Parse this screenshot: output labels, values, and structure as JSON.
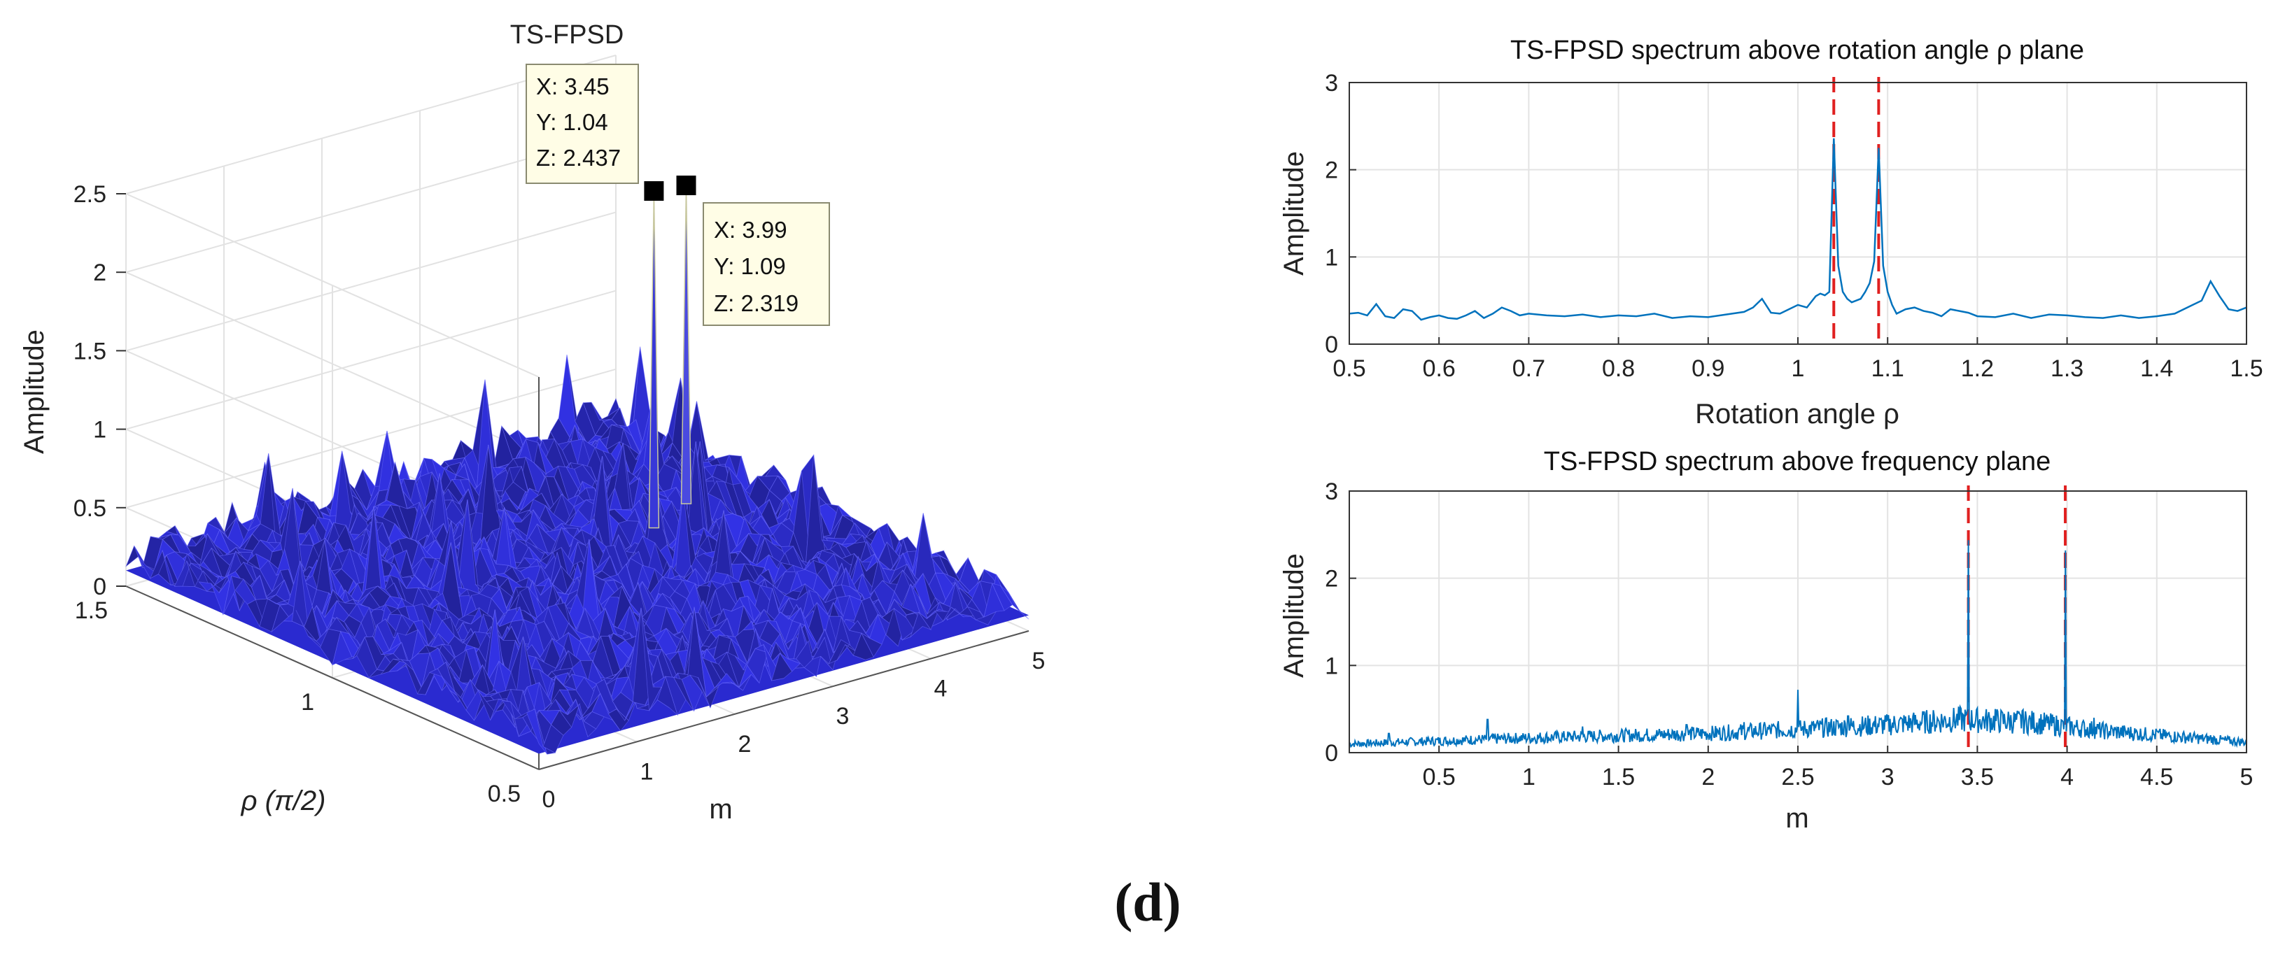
{
  "chart_data": [
    {
      "type": "surface3d",
      "title": "TS-FPSD",
      "zlabel": "Amplitude",
      "xlabel": "m",
      "ylabel": "ρ (π/2)",
      "zlim": [
        0,
        2.5
      ],
      "xlim": [
        0,
        5
      ],
      "ylim": [
        0.5,
        1.5
      ],
      "z_ticks": [
        "2.5",
        "2",
        "1.5",
        "1",
        "0.5",
        "0"
      ],
      "x_ticks": [
        "0",
        "1",
        "2",
        "3",
        "4",
        "5"
      ],
      "y_ticks": [
        "1.5",
        "1",
        "0.5"
      ],
      "grid": true,
      "surface_color": "#2a2ad0",
      "background_level": 0.3,
      "peaks": [
        {
          "x": 3.45,
          "y": 1.04,
          "z": 2.437
        },
        {
          "x": 3.99,
          "y": 1.09,
          "z": 2.319
        }
      ],
      "datatips": [
        {
          "lines": [
            "X: 3.45",
            "Y: 1.04",
            "Z: 2.437"
          ]
        },
        {
          "lines": [
            "X: 3.99",
            "Y: 1.09",
            "Z: 2.319"
          ]
        }
      ]
    },
    {
      "type": "line",
      "title": "TS-FPSD spectrum above rotation angle ρ plane",
      "xlabel": "Rotation angle ρ",
      "ylabel": "Amplitude",
      "xlim": [
        0.5,
        1.5
      ],
      "ylim": [
        0,
        3
      ],
      "x_ticks": [
        "0.5",
        "0.6",
        "0.7",
        "0.8",
        "0.9",
        "1",
        "1.1",
        "1.2",
        "1.3",
        "1.4",
        "1.5"
      ],
      "y_ticks": [
        "0",
        "1",
        "2",
        "3"
      ],
      "grid": true,
      "line_color": "#0072bd",
      "marker_color": "#e02020",
      "markers_x": [
        1.04,
        1.09
      ],
      "series": [
        {
          "name": "spectrum",
          "x": [
            0.5,
            0.51,
            0.52,
            0.53,
            0.54,
            0.55,
            0.56,
            0.57,
            0.58,
            0.59,
            0.6,
            0.61,
            0.62,
            0.63,
            0.64,
            0.65,
            0.66,
            0.67,
            0.68,
            0.69,
            0.7,
            0.72,
            0.74,
            0.76,
            0.78,
            0.8,
            0.82,
            0.84,
            0.86,
            0.88,
            0.9,
            0.92,
            0.94,
            0.95,
            0.96,
            0.97,
            0.98,
            0.99,
            1.0,
            1.01,
            1.02,
            1.025,
            1.03,
            1.035,
            1.04,
            1.045,
            1.05,
            1.055,
            1.06,
            1.07,
            1.075,
            1.08,
            1.085,
            1.09,
            1.095,
            1.1,
            1.105,
            1.11,
            1.12,
            1.13,
            1.14,
            1.15,
            1.16,
            1.17,
            1.18,
            1.19,
            1.2,
            1.22,
            1.24,
            1.26,
            1.28,
            1.3,
            1.32,
            1.34,
            1.36,
            1.38,
            1.4,
            1.42,
            1.44,
            1.45,
            1.46,
            1.47,
            1.48,
            1.49,
            1.5
          ],
          "y": [
            0.35,
            0.36,
            0.33,
            0.46,
            0.32,
            0.3,
            0.4,
            0.38,
            0.28,
            0.31,
            0.33,
            0.3,
            0.29,
            0.33,
            0.38,
            0.3,
            0.35,
            0.42,
            0.38,
            0.33,
            0.35,
            0.33,
            0.32,
            0.34,
            0.31,
            0.33,
            0.32,
            0.35,
            0.3,
            0.32,
            0.31,
            0.34,
            0.37,
            0.42,
            0.52,
            0.36,
            0.35,
            0.4,
            0.45,
            0.42,
            0.55,
            0.58,
            0.56,
            0.6,
            2.36,
            0.9,
            0.6,
            0.52,
            0.48,
            0.52,
            0.6,
            0.7,
            0.95,
            2.25,
            0.9,
            0.6,
            0.45,
            0.35,
            0.4,
            0.42,
            0.38,
            0.36,
            0.32,
            0.4,
            0.38,
            0.36,
            0.32,
            0.31,
            0.35,
            0.3,
            0.34,
            0.33,
            0.31,
            0.3,
            0.33,
            0.3,
            0.32,
            0.35,
            0.45,
            0.5,
            0.72,
            0.55,
            0.4,
            0.38,
            0.42
          ]
        }
      ]
    },
    {
      "type": "line",
      "title": "TS-FPSD spectrum above frequency plane",
      "xlabel": "m",
      "ylabel": "Amplitude",
      "xlim": [
        0,
        5
      ],
      "ylim": [
        0,
        3
      ],
      "x_ticks": [
        "0.5",
        "1",
        "1.5",
        "2",
        "2.5",
        "3",
        "3.5",
        "4",
        "4.5",
        "5"
      ],
      "y_ticks": [
        "0",
        "1",
        "2",
        "3"
      ],
      "grid": true,
      "line_color": "#0072bd",
      "marker_color": "#e02020",
      "markers_x": [
        3.45,
        3.99
      ],
      "baseline": [
        [
          0,
          0.1
        ],
        [
          1,
          0.17
        ],
        [
          2,
          0.22
        ],
        [
          2.5,
          0.27
        ],
        [
          3,
          0.32
        ],
        [
          3.4,
          0.38
        ],
        [
          3.8,
          0.35
        ],
        [
          4.2,
          0.25
        ],
        [
          5,
          0.12
        ]
      ],
      "series": [
        {
          "name": "spectrum",
          "spikes": [
            {
              "x": 0.22,
              "y": 0.22
            },
            {
              "x": 0.77,
              "y": 0.38
            },
            {
              "x": 1.3,
              "y": 0.3
            },
            {
              "x": 1.88,
              "y": 0.32
            },
            {
              "x": 2.2,
              "y": 0.35
            },
            {
              "x": 2.5,
              "y": 0.72
            },
            {
              "x": 2.78,
              "y": 0.42
            },
            {
              "x": 3.2,
              "y": 0.45
            },
            {
              "x": 3.45,
              "y": 2.437
            },
            {
              "x": 3.6,
              "y": 0.5
            },
            {
              "x": 3.75,
              "y": 0.48
            },
            {
              "x": 3.99,
              "y": 2.319
            },
            {
              "x": 4.15,
              "y": 0.4
            },
            {
              "x": 4.5,
              "y": 0.25
            },
            {
              "x": 4.8,
              "y": 0.2
            }
          ]
        }
      ]
    }
  ],
  "figure_label": "(d)"
}
